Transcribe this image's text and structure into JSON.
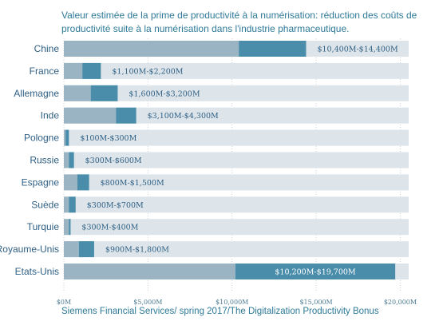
{
  "title": "Valeur estimée de la prime de productivité à la numérisation:  réduction des coûts de productivité suite à la numérisation  dans l'industrie pharmaceutique.",
  "footer": "Siemens Financial Services/ spring 2017/The Digitalization Productivity Bonus",
  "colors": {
    "track": "#dde5ea",
    "low": "#9ab4c4",
    "range": "#4a8daa",
    "country_text": "#2e5f84",
    "label_dark": "#2e5f84",
    "label_light": "#ffffff"
  },
  "chart_data": {
    "type": "bar",
    "orientation": "horizontal",
    "stacked": true,
    "title": "Valeur estimée de la prime de productivité à la numérisation:  réduction des coûts de productivité suite à la numérisation  dans l'industrie pharmaceutique.",
    "xlabel": "",
    "ylabel": "",
    "xlim": [
      0,
      20500
    ],
    "x_ticks": [
      "$0M",
      "$5,000M",
      "$10,000M",
      "$15,000M",
      "$20,000M"
    ],
    "x_tick_values": [
      0,
      5000,
      10000,
      15000,
      20000
    ],
    "categories": [
      "Chine",
      "France",
      "Allemagne",
      "Inde",
      "Pologne",
      "Russie",
      "Espagne",
      "Suède",
      "Turquie",
      "Royaume-Unis",
      "Etats-Unis"
    ],
    "low": [
      10400,
      1100,
      1600,
      3100,
      100,
      300,
      800,
      300,
      300,
      900,
      10200
    ],
    "high": [
      14400,
      2200,
      3200,
      4300,
      300,
      600,
      1500,
      700,
      400,
      1800,
      19700
    ],
    "labels": [
      "$10,400M-$14,400M",
      "$1,100M-$2,200M",
      "$1,600M-$3,200M",
      "$3,100M-$4,300M",
      "$100M-$300M",
      "$300M-$600M",
      "$800M-$1,500M",
      "$300M-$700M",
      "$300M-$400M",
      "$900M-$1,800M",
      "$10,200M-$19,700M"
    ],
    "label_inside": [
      false,
      false,
      false,
      false,
      false,
      false,
      false,
      false,
      false,
      false,
      true
    ],
    "grid": true
  }
}
